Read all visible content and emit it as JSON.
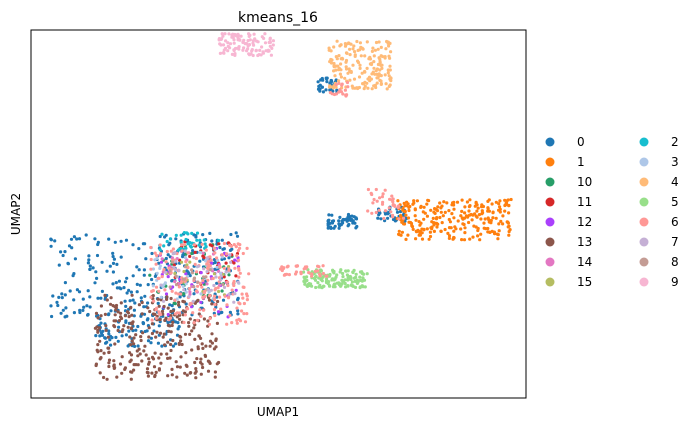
{
  "chart_data": {
    "type": "scatter",
    "title": "kmeans_16",
    "xlabel": "UMAP1",
    "ylabel": "UMAP2",
    "grid": false,
    "ticks": false,
    "legend_position": "right",
    "legend_columns": 2,
    "legend_order": [
      "0",
      "1",
      "10",
      "11",
      "12",
      "13",
      "14",
      "15",
      "2",
      "3",
      "4",
      "5",
      "6",
      "7",
      "8",
      "9"
    ],
    "series": [
      {
        "name": "0",
        "color": "#1f77b4",
        "regions": [
          {
            "x": [
              0.04,
              0.42
            ],
            "y": [
              0.22,
              0.45
            ],
            "density": 1.6
          },
          {
            "x": [
              0.13,
              0.3
            ],
            "y": [
              0.14,
              0.24
            ],
            "density": 0.6
          },
          {
            "x": [
              0.6,
              0.66
            ],
            "y": [
              0.46,
              0.5
            ],
            "density": 0.3
          },
          {
            "x": [
              0.7,
              0.76
            ],
            "y": [
              0.48,
              0.52
            ],
            "density": 0.2
          },
          {
            "x": [
              0.58,
              0.62
            ],
            "y": [
              0.83,
              0.87
            ],
            "density": 0.2
          }
        ]
      },
      {
        "name": "1",
        "color": "#ff7f0e",
        "regions": [
          {
            "x": [
              0.74,
              0.97
            ],
            "y": [
              0.43,
              0.54
            ],
            "density": 1.4
          }
        ]
      },
      {
        "name": "10",
        "color": "#279e68",
        "regions": [
          {
            "x": [
              0.24,
              0.42
            ],
            "y": [
              0.25,
              0.42
            ],
            "density": 0.2
          }
        ]
      },
      {
        "name": "11",
        "color": "#d62728",
        "regions": [
          {
            "x": [
              0.28,
              0.42
            ],
            "y": [
              0.3,
              0.43
            ],
            "density": 0.2
          }
        ]
      },
      {
        "name": "12",
        "color": "#aa40fc",
        "regions": [
          {
            "x": [
              0.26,
              0.42
            ],
            "y": [
              0.22,
              0.41
            ],
            "density": 0.2
          }
        ]
      },
      {
        "name": "13",
        "color": "#8c564b",
        "regions": [
          {
            "x": [
              0.13,
              0.38
            ],
            "y": [
              0.05,
              0.28
            ],
            "density": 1.6
          }
        ]
      },
      {
        "name": "14",
        "color": "#e377c2",
        "regions": [
          {
            "x": [
              0.26,
              0.4
            ],
            "y": [
              0.26,
              0.4
            ],
            "density": 0.2
          }
        ]
      },
      {
        "name": "15",
        "color": "#b5bd61",
        "regions": [
          {
            "x": [
              0.27,
              0.4
            ],
            "y": [
              0.28,
              0.38
            ],
            "density": 0.1
          }
        ]
      },
      {
        "name": "2",
        "color": "#17becf",
        "regions": [
          {
            "x": [
              0.26,
              0.38
            ],
            "y": [
              0.4,
              0.45
            ],
            "density": 0.2
          }
        ]
      },
      {
        "name": "3",
        "color": "#aec7e8",
        "regions": [
          {
            "x": [
              0.24,
              0.42
            ],
            "y": [
              0.26,
              0.42
            ],
            "density": 0.2
          }
        ]
      },
      {
        "name": "4",
        "color": "#ffbb78",
        "regions": [
          {
            "x": [
              0.6,
              0.73
            ],
            "y": [
              0.84,
              0.97
            ],
            "density": 1.0
          }
        ]
      },
      {
        "name": "5",
        "color": "#98df8a",
        "regions": [
          {
            "x": [
              0.55,
              0.68
            ],
            "y": [
              0.3,
              0.35
            ],
            "density": 0.8
          }
        ]
      },
      {
        "name": "6",
        "color": "#ff9896",
        "regions": [
          {
            "x": [
              0.24,
              0.44
            ],
            "y": [
              0.2,
              0.42
            ],
            "density": 1.0
          },
          {
            "x": [
              0.5,
              0.6
            ],
            "y": [
              0.33,
              0.36
            ],
            "density": 0.2
          },
          {
            "x": [
              0.68,
              0.76
            ],
            "y": [
              0.48,
              0.57
            ],
            "density": 0.2
          },
          {
            "x": [
              0.6,
              0.64
            ],
            "y": [
              0.82,
              0.86
            ],
            "density": 0.1
          }
        ]
      },
      {
        "name": "7",
        "color": "#c5b0d5",
        "regions": [
          {
            "x": [
              0.26,
              0.42
            ],
            "y": [
              0.26,
              0.4
            ],
            "density": 0.2
          }
        ]
      },
      {
        "name": "8",
        "color": "#c49c94",
        "regions": [
          {
            "x": [
              0.28,
              0.4
            ],
            "y": [
              0.3,
              0.38
            ],
            "density": 0.1
          }
        ]
      },
      {
        "name": "9",
        "color": "#f7b6d2",
        "regions": [
          {
            "x": [
              0.38,
              0.49
            ],
            "y": [
              0.93,
              0.99
            ],
            "density": 0.6
          }
        ]
      }
    ]
  }
}
